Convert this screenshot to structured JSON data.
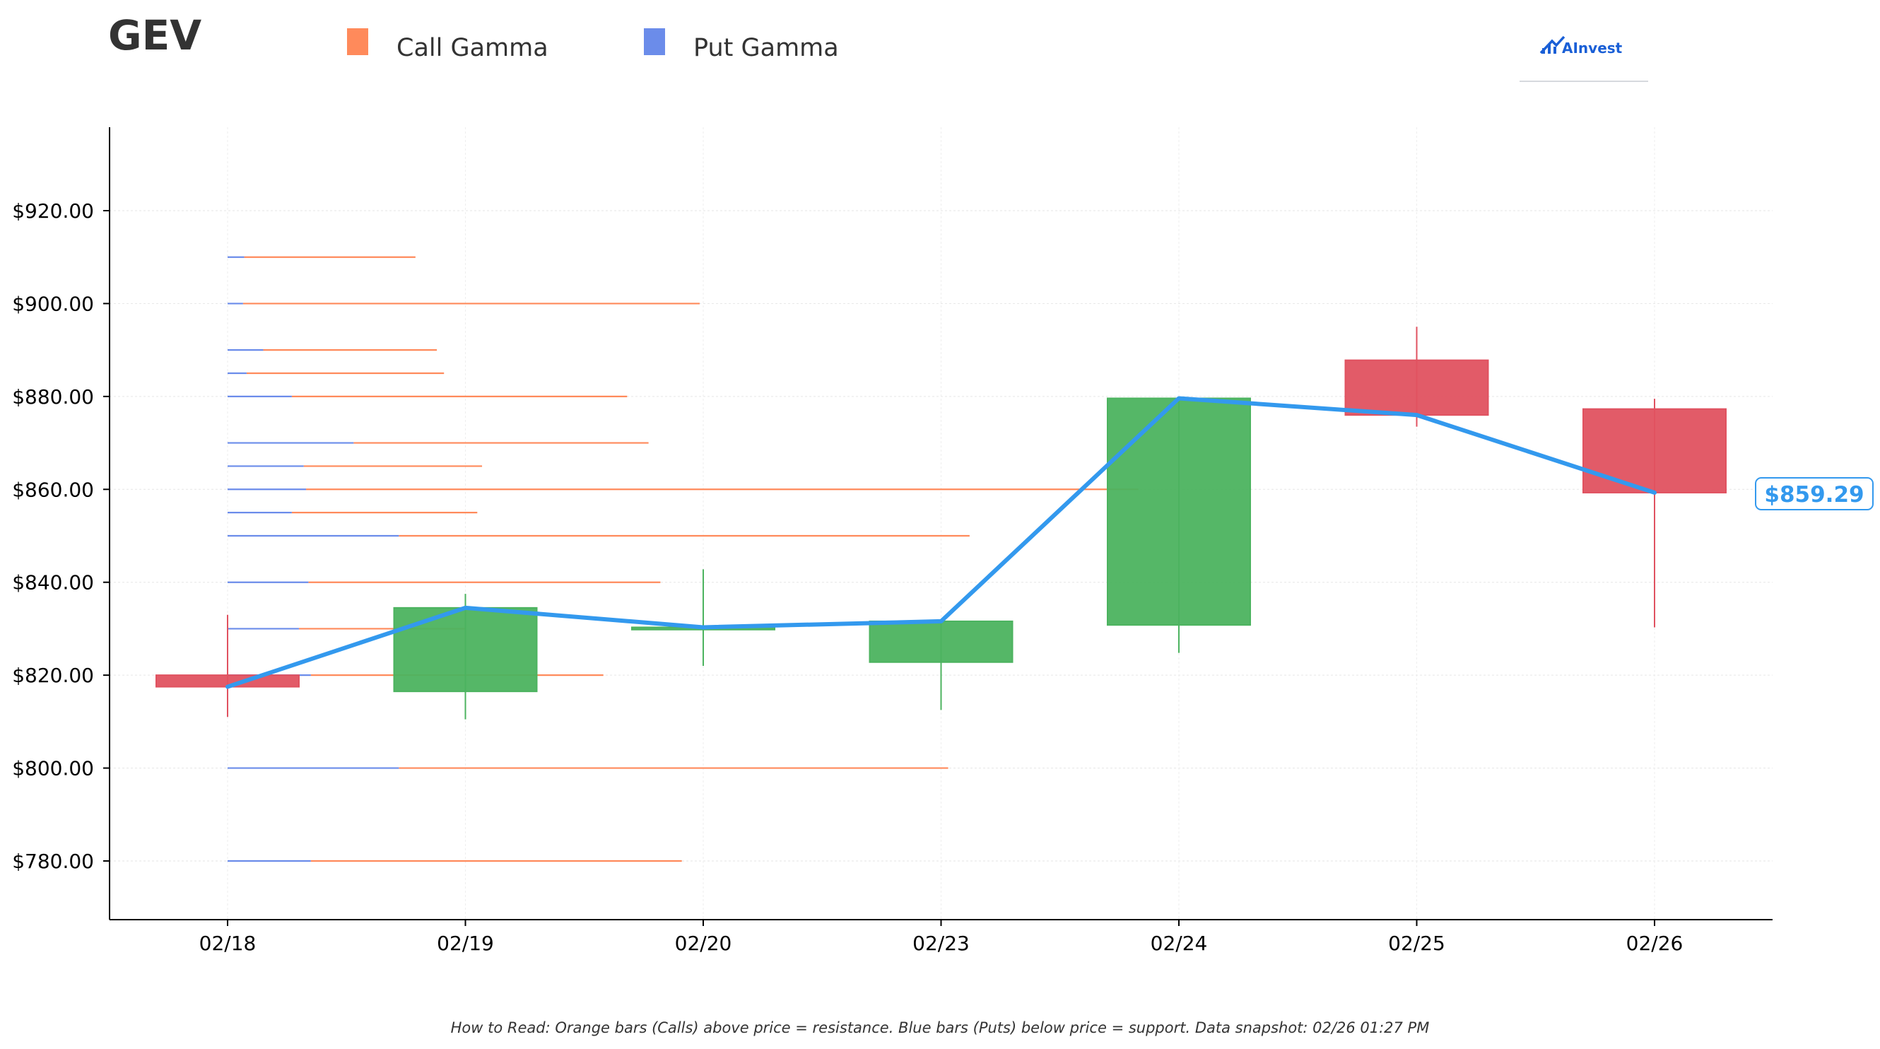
{
  "ticker": "GEV",
  "brand": {
    "name": "AInvest",
    "color": "#1a5fd6"
  },
  "legend": [
    {
      "label": "Call Gamma",
      "color": "#ff8a5b"
    },
    {
      "label": "Put Gamma",
      "color": "#6b8cea"
    }
  ],
  "colors": {
    "call": "#ff8a5b",
    "put": "#6b8cea",
    "up": "#4cb35f",
    "down": "#e05260",
    "line": "#3399ee"
  },
  "footer_note": "How to Read: Orange bars (Calls) above price = resistance. Blue bars (Puts) below price = support. Data snapshot: 02/26 01:27 PM",
  "current_price_label": "$859.29",
  "chart_data": {
    "type": "candlestick",
    "categories": [
      "02/18",
      "02/19",
      "02/20",
      "02/23",
      "02/24",
      "02/25",
      "02/26"
    ],
    "ylim": [
      768,
      938
    ],
    "yticks": [
      780,
      800,
      820,
      840,
      860,
      880,
      900,
      920
    ],
    "ytick_labels": [
      "$780.00",
      "$800.00",
      "$820.00",
      "$840.00",
      "$860.00",
      "$880.00",
      "$900.00",
      "$920.00"
    ],
    "grid": true,
    "legend_position": "top-left",
    "candles": [
      {
        "date": "02/18",
        "open": 820.0,
        "high": 833.0,
        "low": 811.0,
        "close": 817.5
      },
      {
        "date": "02/19",
        "open": 816.5,
        "high": 837.5,
        "low": 810.5,
        "close": 834.5
      },
      {
        "date": "02/20",
        "open": 829.8,
        "high": 842.8,
        "low": 822.0,
        "close": 830.3
      },
      {
        "date": "02/23",
        "open": 822.8,
        "high": 832.0,
        "low": 812.5,
        "close": 831.6
      },
      {
        "date": "02/24",
        "open": 830.8,
        "high": 880.0,
        "low": 824.8,
        "close": 879.6
      },
      {
        "date": "02/25",
        "open": 887.8,
        "high": 895.0,
        "low": 873.5,
        "close": 876.0
      },
      {
        "date": "02/26",
        "open": 877.3,
        "high": 879.5,
        "low": 830.3,
        "close": 859.29
      }
    ],
    "close_line": [
      817.5,
      834.5,
      830.3,
      831.6,
      879.6,
      876.0,
      859.29
    ],
    "gamma_levels": [
      {
        "strike": 910,
        "put": 0.07,
        "call": 0.72
      },
      {
        "strike": 900,
        "put": 0.065,
        "call": 1.92
      },
      {
        "strike": 890,
        "put": 0.15,
        "call": 0.73
      },
      {
        "strike": 885,
        "put": 0.08,
        "call": 0.83
      },
      {
        "strike": 880,
        "put": 0.27,
        "call": 1.41
      },
      {
        "strike": 870,
        "put": 0.53,
        "call": 1.24
      },
      {
        "strike": 865,
        "put": 0.32,
        "call": 0.75
      },
      {
        "strike": 860,
        "put": 0.33,
        "call": 3.5
      },
      {
        "strike": 855,
        "put": 0.27,
        "call": 0.78
      },
      {
        "strike": 850,
        "put": 0.72,
        "call": 2.4
      },
      {
        "strike": 840,
        "put": 0.34,
        "call": 1.48
      },
      {
        "strike": 830,
        "put": 0.3,
        "call": 0.7
      },
      {
        "strike": 820,
        "put": 0.35,
        "call": 1.23
      },
      {
        "strike": 800,
        "put": 0.72,
        "call": 2.31
      },
      {
        "strike": 780,
        "put": 0.35,
        "call": 1.56
      }
    ]
  }
}
